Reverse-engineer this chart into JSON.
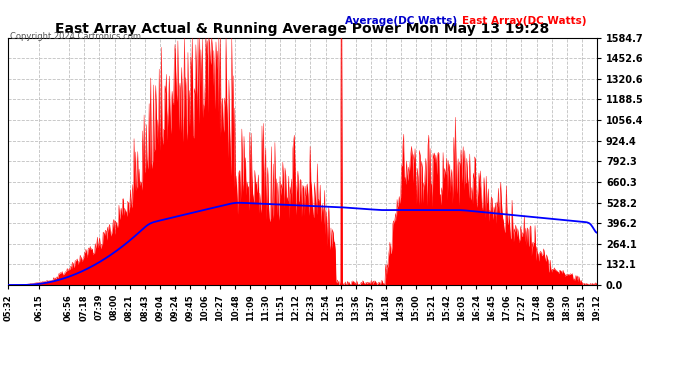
{
  "title": "East Array Actual & Running Average Power Mon May 13 19:28",
  "copyright": "Copyright 2024 Cartronics.com",
  "legend_avg": "Average(DC Watts)",
  "legend_east": "East Array(DC Watts)",
  "ylabel_right_ticks": [
    0.0,
    132.1,
    264.1,
    396.2,
    528.2,
    660.3,
    792.3,
    924.4,
    1056.4,
    1188.5,
    1320.6,
    1452.6,
    1584.7
  ],
  "ymax": 1584.7,
  "ymin": 0.0,
  "bg_color": "#ffffff",
  "plot_bg_color": "#ffffff",
  "grid_color": "#c0c0c0",
  "fill_color": "#ff0000",
  "avg_line_color": "#0000ff",
  "east_label_color": "#ff0000",
  "avg_label_color": "#0000cc",
  "title_color": "#000000",
  "time_labels": [
    "05:32",
    "06:15",
    "06:56",
    "07:18",
    "07:39",
    "08:00",
    "08:21",
    "08:43",
    "09:04",
    "09:24",
    "09:45",
    "10:06",
    "10:27",
    "10:48",
    "11:09",
    "11:30",
    "11:51",
    "12:12",
    "12:33",
    "12:54",
    "13:15",
    "13:36",
    "13:57",
    "14:18",
    "14:39",
    "15:00",
    "15:21",
    "15:42",
    "16:03",
    "16:24",
    "16:45",
    "17:06",
    "17:27",
    "17:48",
    "18:09",
    "18:30",
    "18:51",
    "19:12"
  ]
}
